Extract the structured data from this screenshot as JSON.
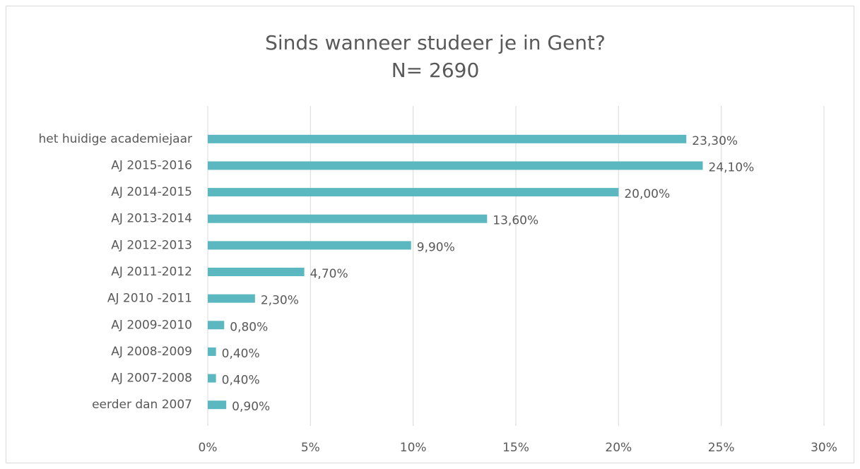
{
  "chart_data": {
    "type": "hbar",
    "title": "Sinds wanneer studeer je in Gent?",
    "subtitle": "N= 2690",
    "categories": [
      "het huidige academiejaar",
      "AJ 2015-2016",
      "AJ 2014-2015",
      "AJ 2013-2014",
      "AJ 2012-2013",
      "AJ 2011-2012",
      "AJ 2010 -2011",
      "AJ 2009-2010",
      "AJ 2008-2009",
      "AJ 2007-2008",
      "eerder dan 2007"
    ],
    "values": [
      23.3,
      24.1,
      20.0,
      13.6,
      9.9,
      4.7,
      2.3,
      0.8,
      0.4,
      0.4,
      0.9
    ],
    "value_labels": [
      "23,30%",
      "24,10%",
      "20,00%",
      "13,60%",
      "9,90%",
      "4,70%",
      "2,30%",
      "0,80%",
      "0,40%",
      "0,40%",
      "0,90%"
    ],
    "color": "#5bb8c1",
    "xlim": [
      0,
      30
    ],
    "xticks": [
      {
        "value": 0,
        "label": "0%"
      },
      {
        "value": 5,
        "label": "5%"
      },
      {
        "value": 10,
        "label": "10%"
      },
      {
        "value": 15,
        "label": "15%"
      },
      {
        "value": 20,
        "label": "20%"
      },
      {
        "value": 25,
        "label": "25%"
      },
      {
        "value": 30,
        "label": "30%"
      }
    ],
    "grid": true
  }
}
